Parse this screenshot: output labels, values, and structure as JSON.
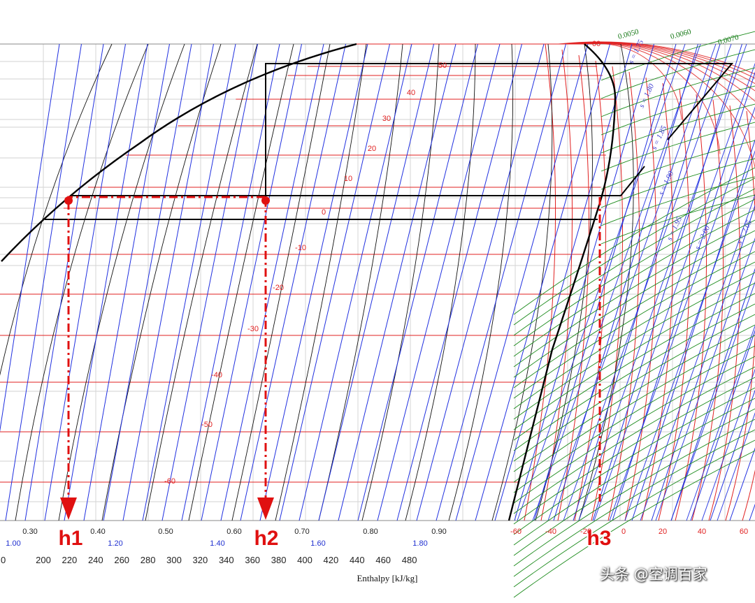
{
  "chart_data": {
    "type": "line",
    "xlabel": "Enthalpy [kJ/kg]",
    "x_ticks": [
      "0",
      "200",
      "220",
      "240",
      "260",
      "280",
      "300",
      "320",
      "340",
      "360",
      "380",
      "400",
      "420",
      "440",
      "460",
      "480"
    ],
    "quality_ticks": [
      "0.30",
      "0.40",
      "0.50",
      "0.60",
      "0.70",
      "0.80",
      "0.90"
    ],
    "entropy_ticks": [
      "1.00",
      "1.20",
      "1.40",
      "1.60",
      "1.80"
    ],
    "temperature_ticks": [
      "-60",
      "-40",
      "-20",
      "0",
      "20",
      "40",
      "60"
    ],
    "isotherm_labels": [
      "60",
      "50",
      "40",
      "30",
      "20",
      "10",
      "0",
      "-10",
      "-20",
      "-30",
      "-40",
      "-50",
      "-60"
    ],
    "isentrope_labels": [
      "s = 1.75",
      "s = 1.80",
      "s = 1.85",
      "s = 1.90",
      "s = 1.95",
      "s = 2.00",
      "s = 2.05"
    ],
    "isochore_labels": [
      "0.0050",
      "0.0060",
      "0.0070"
    ],
    "cycle_enthalpy_markers": [
      "h1",
      "h2",
      "h3"
    ]
  },
  "watermark": "头条 @空调百家",
  "colors": {
    "isotherm": "#e02020",
    "isentrope": "#2030e0",
    "quality": "#111111",
    "isochore": "#1a8a1a",
    "cycle": "#000000",
    "marker": "#e01010"
  }
}
